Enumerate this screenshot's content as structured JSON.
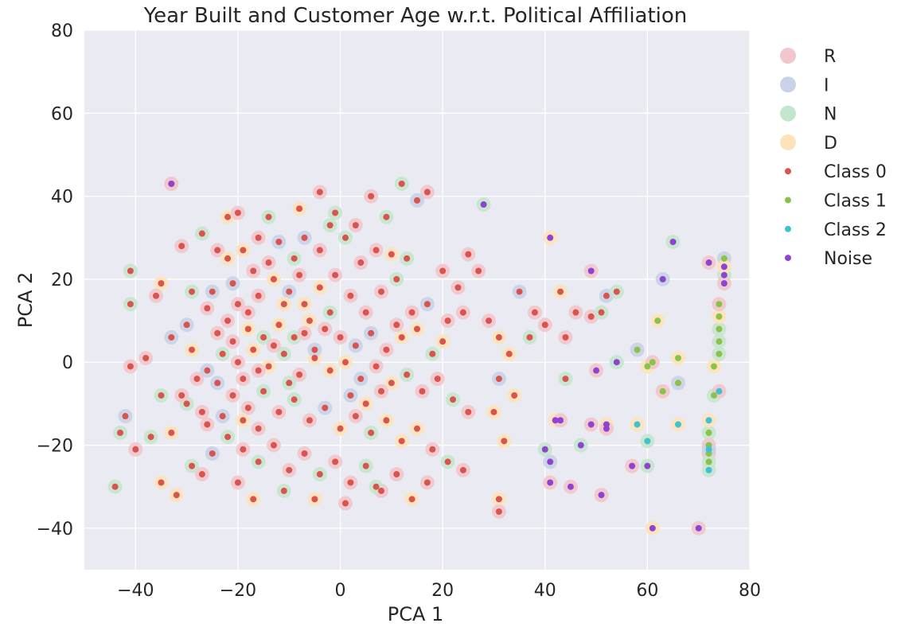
{
  "chart_data": {
    "type": "scatter",
    "title": "Year Built and Customer Age w.r.t. Political Affiliation",
    "xlabel": "PCA 1",
    "ylabel": "PCA 2",
    "xlim": [
      -50,
      80
    ],
    "ylim": [
      -50,
      80
    ],
    "xticks": [
      -40,
      -20,
      0,
      20,
      40,
      60,
      80
    ],
    "yticks": [
      -40,
      -20,
      0,
      20,
      40,
      60,
      80
    ],
    "grid": true,
    "legend_position": "outside-right",
    "colors": {
      "background": "#eaeaf2",
      "grid": "#ffffff",
      "R": "#f2c6cc",
      "I": "#c9d2e6",
      "N": "#c4e6cc",
      "D": "#fde3b9",
      "Class 0": "#d9534f",
      "Class 1": "#8bc34a",
      "Class 2": "#3ec1d3",
      "Noise": "#8e44d1"
    },
    "legend": [
      "R",
      "I",
      "N",
      "D",
      "Class 0",
      "Class 1",
      "Class 2",
      "Noise"
    ],
    "series": [
      {
        "name": "Class 0",
        "kind": "cluster",
        "points": [
          [
            -33,
            43
          ],
          [
            -14,
            35
          ],
          [
            -4,
            41
          ],
          [
            -1,
            36
          ],
          [
            6,
            40
          ],
          [
            12,
            43
          ],
          [
            17,
            41
          ],
          [
            15,
            39
          ],
          [
            9,
            35
          ],
          [
            3,
            33
          ],
          [
            -22,
            35
          ],
          [
            -20,
            36
          ],
          [
            -8,
            37
          ],
          [
            -24,
            27
          ],
          [
            -31,
            28
          ],
          [
            -27,
            31
          ],
          [
            -35,
            19
          ],
          [
            -41,
            22
          ],
          [
            -41,
            14
          ],
          [
            -36,
            16
          ],
          [
            -29,
            17
          ],
          [
            -26,
            13
          ],
          [
            -30,
            9
          ],
          [
            -33,
            6
          ],
          [
            -38,
            1
          ],
          [
            -41,
            -1
          ],
          [
            -42,
            -13
          ],
          [
            -43,
            -17
          ],
          [
            -40,
            -21
          ],
          [
            -44,
            -30
          ],
          [
            -35,
            -29
          ],
          [
            -32,
            -32
          ],
          [
            -29,
            -25
          ],
          [
            -25,
            -22
          ],
          [
            -26,
            -15
          ],
          [
            -30,
            -10
          ],
          [
            -35,
            -8
          ],
          [
            -33,
            -17
          ],
          [
            -37,
            -18
          ],
          [
            -27,
            -27
          ],
          [
            -22,
            25
          ],
          [
            -19,
            27
          ],
          [
            -16,
            30
          ],
          [
            -12,
            29
          ],
          [
            -9,
            25
          ],
          [
            -7,
            30
          ],
          [
            -4,
            27
          ],
          [
            -2,
            33
          ],
          [
            1,
            30
          ],
          [
            4,
            24
          ],
          [
            7,
            27
          ],
          [
            10,
            26
          ],
          [
            13,
            25
          ],
          [
            11,
            20
          ],
          [
            8,
            17
          ],
          [
            5,
            12
          ],
          [
            2,
            16
          ],
          [
            -1,
            21
          ],
          [
            -4,
            18
          ],
          [
            -7,
            14
          ],
          [
            -10,
            17
          ],
          [
            -13,
            20
          ],
          [
            -16,
            16
          ],
          [
            -18,
            12
          ],
          [
            -20,
            14
          ],
          [
            -22,
            10
          ],
          [
            -24,
            7
          ],
          [
            -21,
            5
          ],
          [
            -18,
            8
          ],
          [
            -15,
            6
          ],
          [
            -12,
            9
          ],
          [
            -9,
            6
          ],
          [
            -6,
            10
          ],
          [
            -3,
            8
          ],
          [
            0,
            6
          ],
          [
            3,
            4
          ],
          [
            6,
            7
          ],
          [
            9,
            3
          ],
          [
            12,
            6
          ],
          [
            15,
            8
          ],
          [
            -23,
            2
          ],
          [
            -20,
            0
          ],
          [
            -17,
            3
          ],
          [
            -14,
            -1
          ],
          [
            -11,
            2
          ],
          [
            -8,
            -3
          ],
          [
            -5,
            1
          ],
          [
            -2,
            -2
          ],
          [
            1,
            0
          ],
          [
            4,
            -4
          ],
          [
            7,
            -1
          ],
          [
            10,
            -5
          ],
          [
            13,
            -3
          ],
          [
            16,
            -7
          ],
          [
            19,
            -4
          ],
          [
            -24,
            -5
          ],
          [
            -21,
            -8
          ],
          [
            -18,
            -11
          ],
          [
            -15,
            -7
          ],
          [
            -12,
            -12
          ],
          [
            -9,
            -9
          ],
          [
            -6,
            -14
          ],
          [
            -3,
            -11
          ],
          [
            0,
            -16
          ],
          [
            3,
            -13
          ],
          [
            6,
            -17
          ],
          [
            9,
            -14
          ],
          [
            12,
            -19
          ],
          [
            15,
            -16
          ],
          [
            18,
            -21
          ],
          [
            -22,
            -18
          ],
          [
            -19,
            -21
          ],
          [
            -16,
            -24
          ],
          [
            -13,
            -20
          ],
          [
            -10,
            -26
          ],
          [
            -7,
            -22
          ],
          [
            -4,
            -27
          ],
          [
            -1,
            -24
          ],
          [
            2,
            -29
          ],
          [
            5,
            -25
          ],
          [
            8,
            -31
          ],
          [
            11,
            -27
          ],
          [
            14,
            -33
          ],
          [
            17,
            -29
          ],
          [
            -20,
            -29
          ],
          [
            -17,
            -33
          ],
          [
            -11,
            -31
          ],
          [
            -5,
            -33
          ],
          [
            1,
            -34
          ],
          [
            7,
            -30
          ],
          [
            21,
            -24
          ],
          [
            24,
            -26
          ],
          [
            22,
            -9
          ],
          [
            25,
            -12
          ],
          [
            21,
            10
          ],
          [
            24,
            12
          ],
          [
            27,
            22
          ],
          [
            25,
            26
          ],
          [
            20,
            22
          ],
          [
            23,
            18
          ],
          [
            29,
            10
          ],
          [
            31,
            6
          ],
          [
            33,
            2
          ],
          [
            31,
            -4
          ],
          [
            34,
            -8
          ],
          [
            30,
            -12
          ],
          [
            32,
            -19
          ],
          [
            31,
            -33
          ],
          [
            31,
            -36
          ],
          [
            35,
            17
          ],
          [
            38,
            12
          ],
          [
            40,
            9
          ],
          [
            37,
            6
          ],
          [
            43,
            17
          ],
          [
            44,
            6
          ],
          [
            44,
            -4
          ],
          [
            46,
            12
          ],
          [
            49,
            11
          ],
          [
            51,
            12
          ],
          [
            52,
            16
          ],
          [
            54,
            17
          ],
          [
            -28,
            -4
          ],
          [
            -31,
            -8
          ],
          [
            -26,
            -2
          ],
          [
            -29,
            3
          ],
          [
            -27,
            -12
          ],
          [
            -23,
            -13
          ],
          [
            -19,
            -14
          ],
          [
            -16,
            -16
          ],
          [
            -25,
            17
          ],
          [
            -21,
            19
          ],
          [
            -17,
            22
          ],
          [
            -14,
            24
          ],
          [
            -11,
            14
          ],
          [
            -8,
            21
          ],
          [
            -5,
            3
          ],
          [
            -2,
            12
          ],
          [
            2,
            -8
          ],
          [
            5,
            -10
          ],
          [
            8,
            -7
          ],
          [
            11,
            9
          ],
          [
            14,
            12
          ],
          [
            17,
            14
          ],
          [
            18,
            2
          ],
          [
            20,
            5
          ],
          [
            -19,
            -4
          ],
          [
            -16,
            -2
          ],
          [
            -13,
            4
          ],
          [
            -10,
            -5
          ],
          [
            -7,
            7
          ]
        ]
      },
      {
        "name": "Class 1",
        "kind": "cluster",
        "points": [
          [
            58,
            3
          ],
          [
            60,
            -1
          ],
          [
            61,
            0
          ],
          [
            62,
            10
          ],
          [
            63,
            -7
          ],
          [
            66,
            -5
          ],
          [
            66,
            1
          ],
          [
            73,
            -8
          ],
          [
            73,
            -1
          ],
          [
            74,
            2
          ],
          [
            74,
            5
          ],
          [
            74,
            8
          ],
          [
            74,
            11
          ],
          [
            74,
            14
          ],
          [
            75,
            25
          ],
          [
            72,
            -17
          ],
          [
            72,
            -20
          ],
          [
            72,
            -22
          ],
          [
            72,
            -24
          ]
        ]
      },
      {
        "name": "Class 2",
        "kind": "cluster",
        "points": [
          [
            58,
            -15
          ],
          [
            60,
            -19
          ],
          [
            66,
            -15
          ],
          [
            72,
            -14
          ],
          [
            72,
            -21
          ],
          [
            72,
            -26
          ],
          [
            74,
            -7
          ]
        ]
      },
      {
        "name": "Noise",
        "kind": "cluster",
        "points": [
          [
            -33,
            43
          ],
          [
            28,
            38
          ],
          [
            41,
            30
          ],
          [
            49,
            22
          ],
          [
            63,
            20
          ],
          [
            65,
            29
          ],
          [
            72,
            24
          ],
          [
            75,
            21
          ],
          [
            75,
            19
          ],
          [
            75,
            23
          ],
          [
            50,
            -2
          ],
          [
            54,
            0
          ],
          [
            42,
            -14
          ],
          [
            43,
            -14
          ],
          [
            49,
            -15
          ],
          [
            52,
            -15
          ],
          [
            52,
            -16
          ],
          [
            40,
            -21
          ],
          [
            41,
            -24
          ],
          [
            41,
            -29
          ],
          [
            45,
            -30
          ],
          [
            47,
            -20
          ],
          [
            51,
            -32
          ],
          [
            57,
            -25
          ],
          [
            60,
            -25
          ],
          [
            61,
            -40
          ],
          [
            70,
            -40
          ]
        ]
      }
    ]
  }
}
